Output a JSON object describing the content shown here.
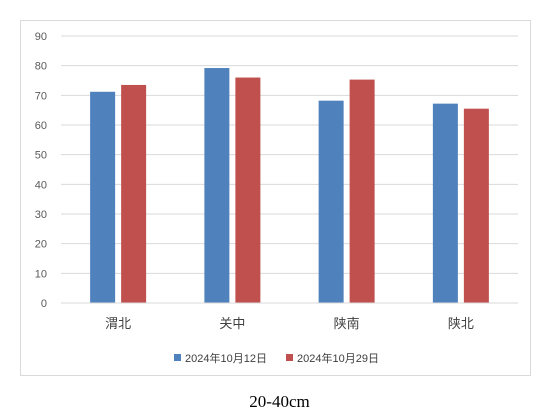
{
  "caption": "20-40cm",
  "chart_data": {
    "type": "bar",
    "title": "",
    "xlabel": "",
    "ylabel": "",
    "categories": [
      "渭北",
      "关中",
      "陕南",
      "陕北"
    ],
    "series": [
      {
        "name": "2024年10月12日",
        "color": "#4F81BD",
        "values": [
          71.2,
          79.2,
          68.2,
          67.2
        ]
      },
      {
        "name": "2024年10月29日",
        "color": "#C0504D",
        "values": [
          73.5,
          76.0,
          75.3,
          65.5
        ]
      }
    ],
    "ylim": [
      0,
      90
    ],
    "yticks": [
      0,
      10,
      20,
      30,
      40,
      50,
      60,
      70,
      80,
      90
    ],
    "grid": true,
    "legend": "bottom-center"
  }
}
